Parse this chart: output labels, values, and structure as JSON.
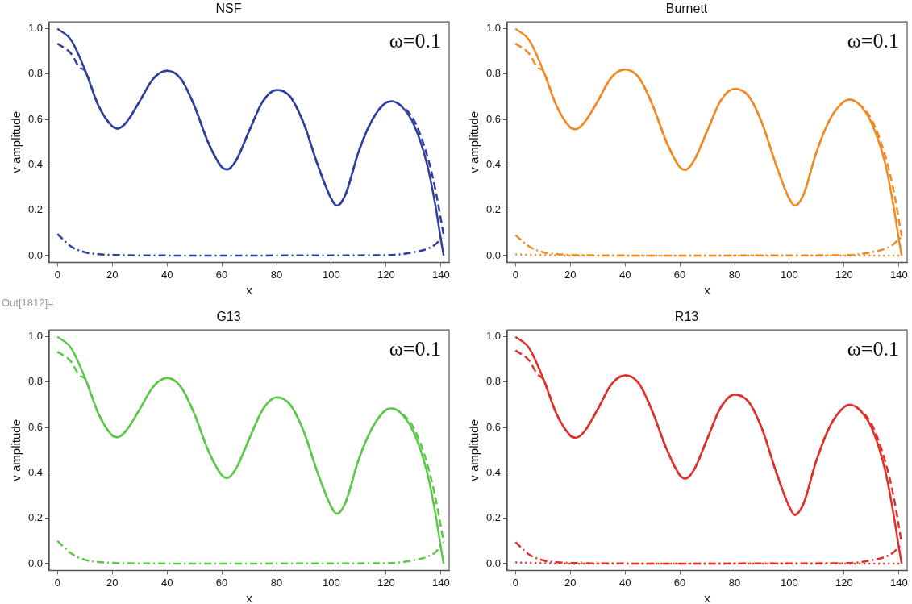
{
  "chart_data": [
    {
      "type": "line",
      "title": "NSF",
      "xlabel": "x",
      "ylabel": "v amplitude",
      "annotations": [
        "ω=0.1"
      ],
      "xlim": [
        -3,
        143
      ],
      "ylim": [
        -0.03,
        1.03
      ],
      "xticks": [
        0,
        20,
        40,
        60,
        80,
        100,
        120,
        140
      ],
      "yticks": [
        {
          "value": 0,
          "label": "0.0"
        },
        {
          "value": 0.2,
          "label": "0.2"
        },
        {
          "value": 0.4,
          "label": "0.4"
        },
        {
          "value": 0.6,
          "label": "0.6"
        },
        {
          "value": 0.8,
          "label": "0.8"
        },
        {
          "value": 1,
          "label": "1.0"
        }
      ],
      "grid": false,
      "legend": false,
      "marker": "none",
      "series": [
        {
          "color": "#2f3f9e",
          "line_style": "solid",
          "x": [
            0,
            5,
            10,
            15,
            20,
            22,
            25,
            30,
            35,
            40,
            45,
            50,
            55,
            60,
            62,
            65,
            70,
            75,
            80,
            85,
            90,
            95,
            100,
            102,
            105,
            110,
            115,
            120,
            122,
            125,
            130,
            135,
            138,
            140,
            141
          ],
          "values": [
            1.0,
            0.95,
            0.82,
            0.66,
            0.57,
            0.56,
            0.585,
            0.68,
            0.78,
            0.815,
            0.78,
            0.66,
            0.5,
            0.39,
            0.38,
            0.415,
            0.55,
            0.68,
            0.73,
            0.7,
            0.58,
            0.4,
            0.25,
            0.22,
            0.265,
            0.46,
            0.6,
            0.675,
            0.68,
            0.665,
            0.58,
            0.4,
            0.22,
            0.07,
            0.0
          ]
        },
        {
          "color": "#2f3f9e",
          "line_style": "dashed",
          "x": [
            0,
            5,
            8,
            10,
            15,
            20,
            22,
            25,
            30,
            35,
            40,
            45,
            50,
            55,
            60,
            62,
            65,
            70,
            75,
            80,
            85,
            90,
            95,
            100,
            102,
            105,
            110,
            115,
            120,
            122,
            125,
            130,
            135,
            138,
            141
          ],
          "values": [
            0.935,
            0.89,
            0.83,
            0.815,
            0.66,
            0.57,
            0.56,
            0.585,
            0.68,
            0.78,
            0.815,
            0.78,
            0.66,
            0.5,
            0.39,
            0.38,
            0.415,
            0.55,
            0.68,
            0.73,
            0.7,
            0.58,
            0.4,
            0.25,
            0.22,
            0.265,
            0.46,
            0.6,
            0.675,
            0.68,
            0.665,
            0.6,
            0.44,
            0.29,
            0.09
          ]
        },
        {
          "color": "#2f3f9e",
          "line_style": "dashdot",
          "x": [
            0,
            5,
            10,
            15,
            20,
            30,
            60,
            100,
            120,
            125,
            130,
            135,
            138,
            141
          ],
          "values": [
            0.095,
            0.04,
            0.015,
            0.006,
            0.003,
            0.001,
            0,
            0.001,
            0.002,
            0.005,
            0.015,
            0.03,
            0.05,
            0.09
          ]
        }
      ]
    },
    {
      "type": "line",
      "title": "Burnett",
      "xlabel": "x",
      "ylabel": "v amplitude",
      "annotations": [
        "ω=0.1"
      ],
      "xlim": [
        -3,
        143
      ],
      "ylim": [
        -0.03,
        1.03
      ],
      "xticks": [
        0,
        20,
        40,
        60,
        80,
        100,
        120,
        140
      ],
      "yticks": [
        {
          "value": 0,
          "label": "0.0"
        },
        {
          "value": 0.2,
          "label": "0.2"
        },
        {
          "value": 0.4,
          "label": "0.4"
        },
        {
          "value": 0.6,
          "label": "0.6"
        },
        {
          "value": 0.8,
          "label": "0.8"
        },
        {
          "value": 1,
          "label": "1.0"
        }
      ],
      "grid": false,
      "legend": false,
      "marker": "none",
      "series": [
        {
          "color": "#f08a24",
          "line_style": "solid",
          "x": [
            0,
            5,
            10,
            15,
            20,
            22,
            25,
            30,
            35,
            40,
            45,
            50,
            55,
            60,
            62,
            65,
            70,
            75,
            80,
            85,
            90,
            95,
            100,
            102,
            105,
            110,
            115,
            120,
            122,
            125,
            130,
            135,
            138,
            140,
            141
          ],
          "values": [
            1.0,
            0.95,
            0.82,
            0.66,
            0.565,
            0.557,
            0.585,
            0.68,
            0.785,
            0.82,
            0.785,
            0.665,
            0.505,
            0.39,
            0.378,
            0.415,
            0.55,
            0.685,
            0.735,
            0.705,
            0.585,
            0.405,
            0.25,
            0.22,
            0.265,
            0.46,
            0.605,
            0.68,
            0.688,
            0.672,
            0.585,
            0.405,
            0.22,
            0.07,
            0.0
          ]
        },
        {
          "color": "#f08a24",
          "line_style": "dashed",
          "x": [
            0,
            5,
            8,
            10,
            15,
            20,
            22,
            25,
            30,
            35,
            40,
            45,
            50,
            55,
            60,
            62,
            65,
            70,
            75,
            80,
            85,
            90,
            95,
            100,
            102,
            105,
            110,
            115,
            120,
            122,
            125,
            130,
            135,
            138,
            141
          ],
          "values": [
            0.935,
            0.89,
            0.83,
            0.815,
            0.66,
            0.565,
            0.557,
            0.585,
            0.68,
            0.785,
            0.82,
            0.785,
            0.665,
            0.505,
            0.39,
            0.378,
            0.415,
            0.55,
            0.685,
            0.735,
            0.705,
            0.585,
            0.405,
            0.25,
            0.22,
            0.265,
            0.46,
            0.605,
            0.68,
            0.688,
            0.672,
            0.6,
            0.44,
            0.29,
            0.085
          ]
        },
        {
          "color": "#f08a24",
          "line_style": "dashdot",
          "x": [
            0,
            5,
            10,
            15,
            20,
            30,
            60,
            100,
            120,
            125,
            130,
            135,
            138,
            141
          ],
          "values": [
            0.09,
            0.04,
            0.015,
            0.006,
            0.003,
            0.001,
            0,
            0.001,
            0.002,
            0.005,
            0.015,
            0.03,
            0.05,
            0.085
          ]
        },
        {
          "color": "#f08a24",
          "line_style": "dotted",
          "x": [
            0,
            10,
            20,
            141
          ],
          "values": [
            0.005,
            0.002,
            0,
            0
          ]
        }
      ]
    },
    {
      "type": "line",
      "title": "G13",
      "xlabel": "x",
      "ylabel": "v amplitude",
      "annotations": [
        "ω=0.1",
        "Out[1812]="
      ],
      "xlim": [
        -3,
        143
      ],
      "ylim": [
        -0.03,
        1.03
      ],
      "xticks": [
        0,
        20,
        40,
        60,
        80,
        100,
        120,
        140
      ],
      "yticks": [
        {
          "value": 0,
          "label": "0.0"
        },
        {
          "value": 0.2,
          "label": "0.2"
        },
        {
          "value": 0.4,
          "label": "0.4"
        },
        {
          "value": 0.6,
          "label": "0.6"
        },
        {
          "value": 0.8,
          "label": "0.8"
        },
        {
          "value": 1,
          "label": "1.0"
        }
      ],
      "grid": false,
      "legend": false,
      "marker": "none",
      "series": [
        {
          "color": "#5cc84a",
          "line_style": "solid",
          "x": [
            0,
            5,
            10,
            15,
            20,
            22,
            25,
            30,
            35,
            40,
            45,
            50,
            55,
            60,
            62,
            65,
            70,
            75,
            80,
            85,
            90,
            95,
            100,
            102,
            105,
            110,
            115,
            120,
            122,
            125,
            130,
            135,
            138,
            140,
            141
          ],
          "values": [
            1.0,
            0.95,
            0.82,
            0.66,
            0.565,
            0.557,
            0.585,
            0.68,
            0.78,
            0.818,
            0.78,
            0.66,
            0.5,
            0.39,
            0.378,
            0.415,
            0.55,
            0.68,
            0.733,
            0.7,
            0.58,
            0.4,
            0.25,
            0.22,
            0.265,
            0.46,
            0.6,
            0.678,
            0.684,
            0.668,
            0.58,
            0.4,
            0.22,
            0.07,
            0.0
          ]
        },
        {
          "color": "#5cc84a",
          "line_style": "dashed",
          "x": [
            0,
            5,
            8,
            10,
            15,
            20,
            22,
            25,
            30,
            35,
            40,
            45,
            50,
            55,
            60,
            62,
            65,
            70,
            75,
            80,
            85,
            90,
            95,
            100,
            102,
            105,
            110,
            115,
            120,
            122,
            125,
            130,
            135,
            138,
            141
          ],
          "values": [
            0.935,
            0.89,
            0.83,
            0.815,
            0.66,
            0.565,
            0.557,
            0.585,
            0.68,
            0.78,
            0.818,
            0.78,
            0.66,
            0.5,
            0.39,
            0.378,
            0.415,
            0.55,
            0.68,
            0.733,
            0.7,
            0.58,
            0.4,
            0.25,
            0.22,
            0.265,
            0.46,
            0.6,
            0.678,
            0.684,
            0.668,
            0.6,
            0.44,
            0.29,
            0.095
          ]
        },
        {
          "color": "#5cc84a",
          "line_style": "dashdot",
          "x": [
            0,
            5,
            10,
            15,
            20,
            30,
            60,
            100,
            120,
            125,
            130,
            135,
            138,
            141
          ],
          "values": [
            0.1,
            0.045,
            0.017,
            0.007,
            0.003,
            0.001,
            0,
            0.001,
            0.002,
            0.005,
            0.015,
            0.03,
            0.05,
            0.095
          ]
        }
      ]
    },
    {
      "type": "line",
      "title": "R13",
      "xlabel": "x",
      "ylabel": "v amplitude",
      "annotations": [
        "ω=0.1"
      ],
      "xlim": [
        -3,
        143
      ],
      "ylim": [
        -0.03,
        1.03
      ],
      "xticks": [
        0,
        20,
        40,
        60,
        80,
        100,
        120,
        140
      ],
      "yticks": [
        {
          "value": 0,
          "label": "0.0"
        },
        {
          "value": 0.2,
          "label": "0.2"
        },
        {
          "value": 0.4,
          "label": "0.4"
        },
        {
          "value": 0.6,
          "label": "0.6"
        },
        {
          "value": 0.8,
          "label": "0.8"
        },
        {
          "value": 1,
          "label": "1.0"
        }
      ],
      "grid": false,
      "legend": false,
      "marker": "none",
      "series": [
        {
          "color": "#e0302a",
          "line_style": "solid",
          "x": [
            0,
            5,
            10,
            15,
            20,
            22,
            25,
            30,
            35,
            40,
            45,
            50,
            55,
            60,
            62,
            65,
            70,
            75,
            80,
            85,
            90,
            95,
            100,
            102,
            105,
            110,
            115,
            120,
            122,
            125,
            130,
            135,
            138,
            140,
            141
          ],
          "values": [
            1.0,
            0.95,
            0.82,
            0.66,
            0.565,
            0.555,
            0.58,
            0.68,
            0.79,
            0.83,
            0.795,
            0.67,
            0.51,
            0.39,
            0.375,
            0.41,
            0.55,
            0.69,
            0.745,
            0.715,
            0.595,
            0.41,
            0.25,
            0.215,
            0.26,
            0.46,
            0.61,
            0.69,
            0.7,
            0.685,
            0.6,
            0.41,
            0.22,
            0.07,
            0.0
          ]
        },
        {
          "color": "#e0302a",
          "line_style": "dashed",
          "x": [
            0,
            5,
            8,
            10,
            15,
            20,
            22,
            25,
            30,
            35,
            40,
            45,
            50,
            55,
            60,
            62,
            65,
            70,
            75,
            80,
            85,
            90,
            95,
            100,
            102,
            105,
            110,
            115,
            120,
            122,
            125,
            130,
            135,
            138,
            141
          ],
          "values": [
            0.94,
            0.895,
            0.835,
            0.815,
            0.66,
            0.565,
            0.555,
            0.58,
            0.68,
            0.79,
            0.83,
            0.795,
            0.67,
            0.51,
            0.39,
            0.375,
            0.41,
            0.55,
            0.69,
            0.745,
            0.715,
            0.595,
            0.41,
            0.25,
            0.215,
            0.26,
            0.46,
            0.61,
            0.69,
            0.7,
            0.685,
            0.615,
            0.45,
            0.3,
            0.09
          ]
        },
        {
          "color": "#e0302a",
          "line_style": "dashdot",
          "x": [
            0,
            5,
            10,
            15,
            20,
            30,
            60,
            100,
            120,
            125,
            130,
            135,
            138,
            141
          ],
          "values": [
            0.095,
            0.04,
            0.015,
            0.006,
            0.003,
            0.001,
            0,
            0.001,
            0.002,
            0.005,
            0.015,
            0.03,
            0.05,
            0.085
          ]
        },
        {
          "color": "#e0302a",
          "line_style": "dotted",
          "x": [
            0,
            10,
            20,
            141
          ],
          "values": [
            0.005,
            0.002,
            0,
            0
          ]
        }
      ]
    }
  ]
}
